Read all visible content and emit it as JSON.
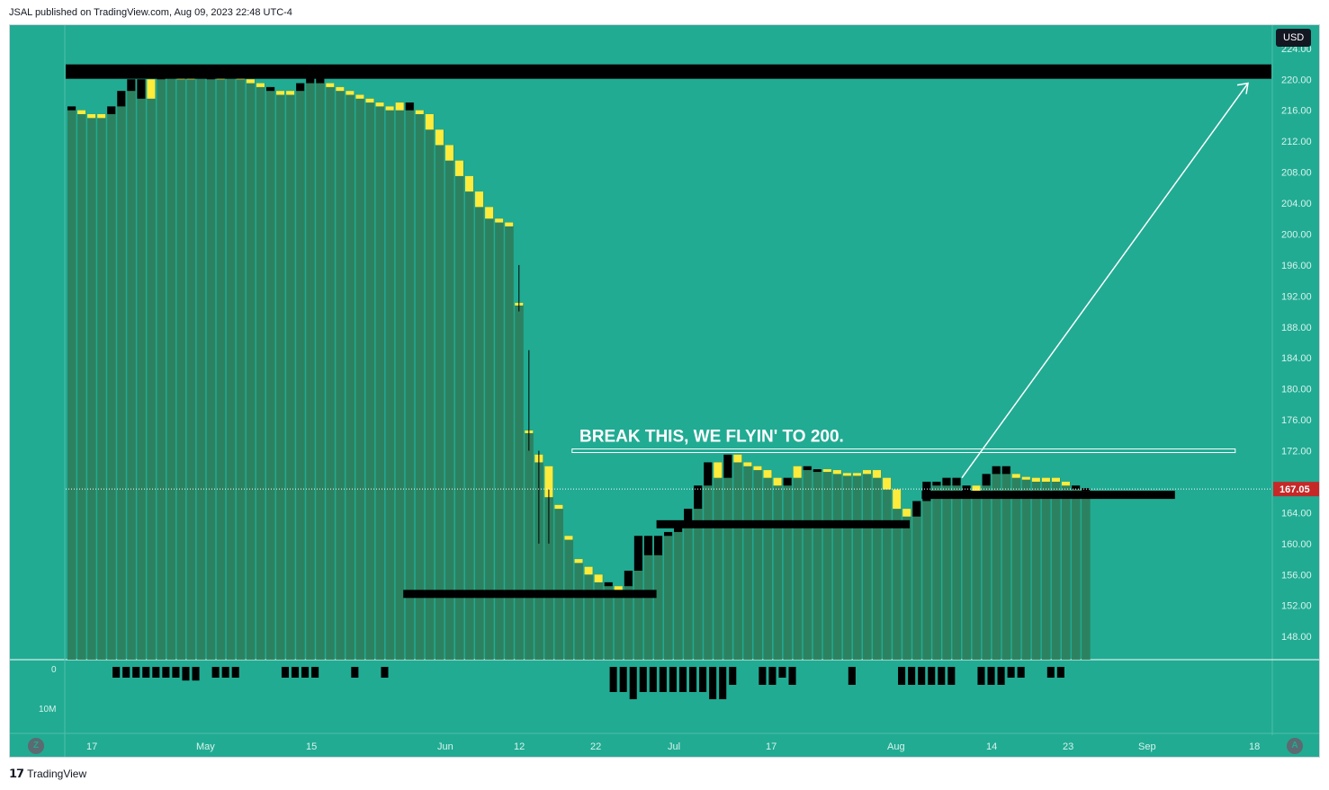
{
  "header": {
    "published": "JSAL published on TradingView.com, Aug 09, 2023 22:48 UTC-4"
  },
  "footer": {
    "brand": "TradingView",
    "logo": "tradingview-logo"
  },
  "toolbar": {
    "currency": "USD",
    "zoom_label": "Z",
    "auto_label": "A"
  },
  "colors": {
    "background": "#21ab93",
    "volume_bar": "#2e7d5b",
    "candle_body": "#000000",
    "candle_alt": "#ffeb3b",
    "price_tag": "#c62828"
  },
  "annotation": {
    "text": "BREAK THIS, WE FLYIN' TO 200."
  },
  "chart_data": {
    "type": "candlestick",
    "y_axis": {
      "ticks": [
        "224.00",
        "220.00",
        "216.00",
        "212.00",
        "208.00",
        "204.00",
        "200.00",
        "196.00",
        "192.00",
        "188.00",
        "184.00",
        "180.00",
        "176.00",
        "172.00",
        "164.00",
        "160.00",
        "156.00",
        "152.00",
        "148.00"
      ],
      "range": [
        145,
        227
      ]
    },
    "x_axis": {
      "ticks": [
        "17",
        "May",
        "15",
        "Jun",
        "12",
        "22",
        "Jul",
        "17",
        "Aug",
        "14",
        "23",
        "Sep",
        "18"
      ]
    },
    "last_price": "167.05",
    "volume_axis": {
      "ticks": [
        "0",
        "10M"
      ]
    },
    "candles": [
      [
        216.5,
        216.0
      ],
      [
        216.0,
        215.5
      ],
      [
        215.5,
        215.0
      ],
      [
        215.0,
        215.5
      ],
      [
        215.5,
        216.5
      ],
      [
        216.5,
        218.5
      ],
      [
        218.5,
        220.0
      ],
      [
        220.0,
        217.5
      ],
      [
        217.5,
        220.0
      ],
      [
        220.0,
        221.5
      ],
      [
        221.5,
        220.5
      ],
      [
        220.5,
        220.0
      ],
      [
        220.0,
        220.5
      ],
      [
        220.5,
        221.0
      ],
      [
        221.0,
        220.0
      ],
      [
        220.0,
        220.5
      ],
      [
        220.5,
        221.0
      ],
      [
        221.0,
        220.0
      ],
      [
        220.0,
        219.5
      ],
      [
        219.5,
        219.0
      ],
      [
        219.0,
        218.5
      ],
      [
        218.5,
        218.0
      ],
      [
        218.0,
        218.5
      ],
      [
        218.5,
        219.5
      ],
      [
        219.5,
        221.0
      ],
      [
        221.0,
        219.5
      ],
      [
        219.5,
        219.0
      ],
      [
        219.0,
        218.5
      ],
      [
        218.5,
        218.0
      ],
      [
        218.0,
        217.5
      ],
      [
        217.5,
        217.0
      ],
      [
        217.0,
        216.5
      ],
      [
        216.5,
        216.0
      ],
      [
        216.0,
        217.0
      ],
      [
        217.0,
        216.0
      ],
      [
        216.0,
        215.5
      ],
      [
        215.5,
        213.5
      ],
      [
        213.5,
        211.5
      ],
      [
        211.5,
        209.5
      ],
      [
        209.5,
        207.5
      ],
      [
        207.5,
        205.5
      ],
      [
        205.5,
        203.5
      ],
      [
        203.5,
        202.0
      ],
      [
        202.0,
        201.5
      ],
      [
        201.5,
        201.0
      ],
      [
        191.0,
        191.0
      ],
      [
        174.5,
        174.5
      ],
      [
        171.5,
        170.5
      ],
      [
        170.0,
        166.0
      ],
      [
        165.0,
        164.5
      ],
      [
        161.0,
        160.5
      ],
      [
        158.0,
        157.5
      ],
      [
        157.0,
        156.0
      ],
      [
        156.0,
        155.0
      ],
      [
        155.0,
        154.5
      ],
      [
        154.5,
        154.0
      ],
      [
        154.5,
        156.5
      ],
      [
        156.5,
        161.0
      ],
      [
        161.0,
        158.5
      ],
      [
        158.5,
        161.0
      ],
      [
        161.0,
        161.5
      ],
      [
        161.5,
        163.0
      ],
      [
        163.0,
        164.5
      ],
      [
        164.5,
        167.5
      ],
      [
        167.5,
        170.5
      ],
      [
        170.5,
        168.5
      ],
      [
        168.5,
        171.5
      ],
      [
        171.5,
        170.5
      ],
      [
        170.5,
        170.0
      ],
      [
        170.0,
        169.5
      ],
      [
        169.5,
        168.5
      ],
      [
        168.5,
        167.5
      ],
      [
        167.5,
        168.5
      ],
      [
        168.5,
        170.0
      ],
      [
        170.0,
        169.5
      ],
      [
        169.5,
        169.5
      ],
      [
        169.5,
        169.5
      ],
      [
        169.5,
        169.0
      ],
      [
        169.0,
        169.0
      ],
      [
        169.0,
        169.0
      ],
      [
        169.0,
        169.5
      ],
      [
        169.5,
        168.5
      ],
      [
        168.5,
        167.0
      ],
      [
        167.0,
        164.5
      ],
      [
        164.5,
        163.5
      ],
      [
        163.5,
        165.5
      ],
      [
        165.5,
        168.0
      ],
      [
        168.0,
        167.5
      ],
      [
        167.5,
        168.5
      ],
      [
        168.5,
        167.5
      ],
      [
        167.5,
        166.5
      ],
      [
        166.5,
        167.5
      ],
      [
        167.5,
        169.0
      ],
      [
        169.0,
        170.0
      ],
      [
        170.0,
        169.0
      ],
      [
        169.0,
        168.5
      ],
      [
        168.5,
        168.5
      ],
      [
        168.5,
        168.0
      ],
      [
        168.0,
        168.5
      ],
      [
        168.5,
        168.0
      ],
      [
        168.0,
        167.5
      ],
      [
        167.5,
        167.0
      ],
      [
        167.0,
        167.05
      ]
    ],
    "candle_colors": "mixed",
    "yellow_indices": [
      1,
      2,
      3,
      8,
      11,
      12,
      15,
      16,
      17,
      18,
      19,
      21,
      22,
      26,
      27,
      28,
      29,
      30,
      31,
      32,
      33,
      35,
      36,
      37,
      38,
      39,
      40,
      41,
      42,
      43,
      44,
      45,
      46,
      47,
      48,
      49,
      50,
      51,
      52,
      53,
      55,
      65,
      67,
      68,
      69,
      70,
      71,
      73,
      76,
      77,
      78,
      79,
      80,
      81,
      82,
      83,
      84,
      91,
      95,
      96,
      97,
      98,
      99,
      100
    ],
    "horizontal_levels": [
      {
        "price": 221.0,
        "from": 0,
        "to": 1.0,
        "style": "thick"
      },
      {
        "price": 153.5,
        "from": 0.28,
        "to": 0.49,
        "style": "thick"
      },
      {
        "price": 162.5,
        "from": 0.49,
        "to": 0.7,
        "style": "thick"
      },
      {
        "price": 166.3,
        "from": 0.71,
        "to": 0.92,
        "style": "thick"
      },
      {
        "price": 172.0,
        "from": 0.42,
        "to": 0.97,
        "style": "outline"
      }
    ],
    "volume_bars": [
      [
        2,
        1
      ],
      [
        3,
        1
      ],
      [
        4,
        1
      ],
      [
        5,
        1
      ],
      [
        6,
        1
      ],
      [
        7,
        1
      ],
      [
        8,
        1
      ],
      [
        9,
        1.4
      ],
      [
        10,
        1.4
      ],
      [
        12,
        1
      ],
      [
        13,
        1
      ],
      [
        14,
        1
      ],
      [
        19,
        1
      ],
      [
        20,
        1
      ],
      [
        21,
        1
      ],
      [
        22,
        1
      ],
      [
        26,
        1
      ],
      [
        29,
        1
      ],
      [
        52,
        3
      ],
      [
        53,
        3
      ],
      [
        54,
        4
      ],
      [
        55,
        3
      ],
      [
        56,
        3
      ],
      [
        57,
        3
      ],
      [
        58,
        3
      ],
      [
        59,
        3
      ],
      [
        60,
        3
      ],
      [
        61,
        3
      ],
      [
        62,
        4
      ],
      [
        63,
        4
      ],
      [
        64,
        2
      ],
      [
        67,
        2
      ],
      [
        68,
        2
      ],
      [
        69,
        1
      ],
      [
        70,
        2
      ],
      [
        76,
        2
      ],
      [
        81,
        2
      ],
      [
        82,
        2
      ],
      [
        83,
        2
      ],
      [
        84,
        2
      ],
      [
        85,
        2
      ],
      [
        86,
        2
      ],
      [
        89,
        2
      ],
      [
        90,
        2
      ],
      [
        91,
        2
      ],
      [
        92,
        1
      ],
      [
        93,
        1
      ],
      [
        96,
        1
      ],
      [
        97,
        1
      ]
    ]
  }
}
